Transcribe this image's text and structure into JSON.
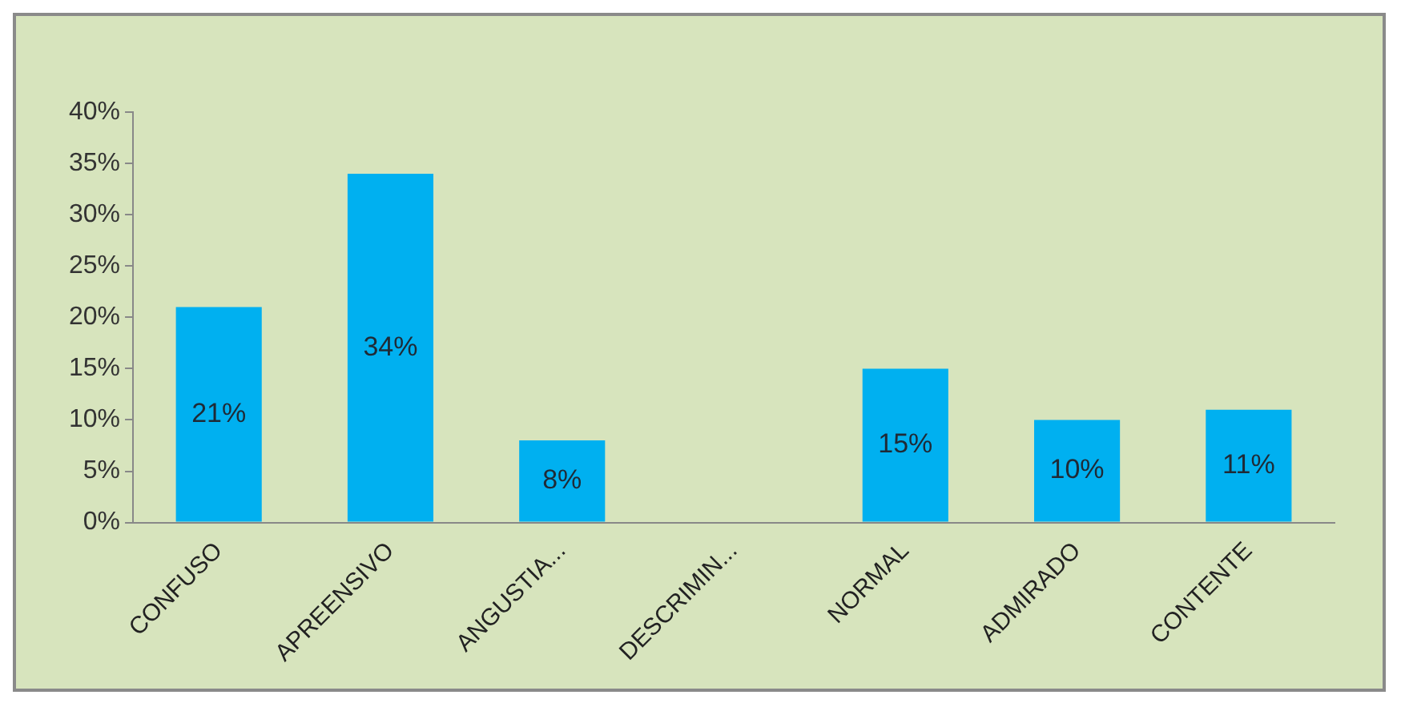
{
  "chart_data": {
    "type": "bar",
    "categories": [
      "CONFUSO",
      "APREENSIVO",
      "ANGUSTIA...",
      "DESCRIMIN...",
      "NORMAL",
      "ADMIRADO",
      "CONTENTE"
    ],
    "values": [
      21,
      34,
      8,
      0,
      15,
      10,
      11
    ],
    "value_labels": [
      "21%",
      "34%",
      "8%",
      null,
      "15%",
      "10%",
      "11%"
    ],
    "color": "#00b0f0",
    "ylim": [
      0,
      40
    ],
    "yticks": [
      {
        "value": 0,
        "label": "0%"
      },
      {
        "value": 5,
        "label": "5%"
      },
      {
        "value": 10,
        "label": "10%"
      },
      {
        "value": 15,
        "label": "15%"
      },
      {
        "value": 20,
        "label": "20%"
      },
      {
        "value": 25,
        "label": "25%"
      },
      {
        "value": 30,
        "label": "30%"
      },
      {
        "value": 35,
        "label": "35%"
      },
      {
        "value": 40,
        "label": "40%"
      }
    ],
    "grid": false,
    "legend": false
  }
}
